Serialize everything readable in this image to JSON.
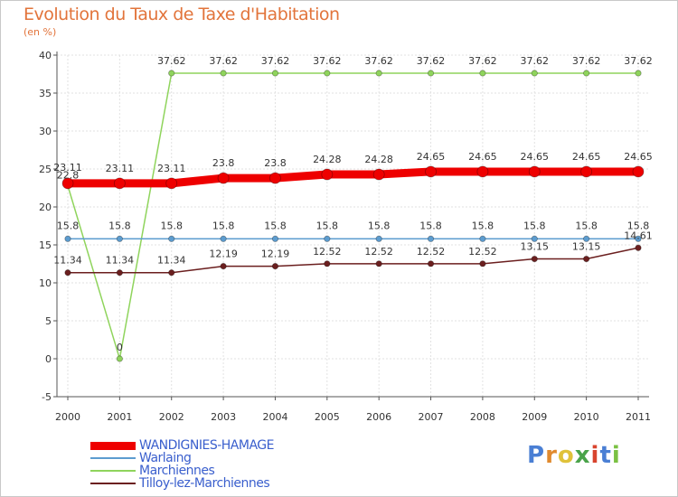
{
  "title": "Evolution du Taux de Taxe d'Habitation",
  "subtitle": "(en %)",
  "logo": {
    "text": "Proxiti",
    "letter_colors": [
      "#4a7fd4",
      "#e08a2e",
      "#e0c23a",
      "#4aa34a",
      "#d8442e",
      "#4a7fd4",
      "#7ac143"
    ]
  },
  "chart_data": {
    "type": "line",
    "title": "Evolution du Taux de Taxe d'Habitation",
    "ylabel": "(en %)",
    "xlabel": "",
    "ylim": [
      -5,
      40
    ],
    "yticks": [
      -5,
      0,
      5,
      10,
      15,
      20,
      25,
      30,
      35,
      40
    ],
    "grid": true,
    "legend": "bottom-left",
    "categories": [
      "2000",
      "2001",
      "2002",
      "2003",
      "2004",
      "2005",
      "2006",
      "2007",
      "2008",
      "2009",
      "2010",
      "2011"
    ],
    "series": [
      {
        "name": "WANDIGNIES-HAMAGE",
        "color": "#ee0000",
        "values": [
          23.11,
          23.11,
          23.11,
          23.8,
          23.8,
          24.28,
          24.28,
          24.65,
          24.65,
          24.65,
          24.65,
          24.65
        ],
        "labels": [
          "23.11",
          "23.11",
          "23.11",
          "23.8",
          "23.8",
          "24.28",
          "24.28",
          "24.65",
          "24.65",
          "24.65",
          "24.65",
          "24.65"
        ]
      },
      {
        "name": "Warlaing",
        "color": "#5c9ccf",
        "values": [
          15.8,
          15.8,
          15.8,
          15.8,
          15.8,
          15.8,
          15.8,
          15.8,
          15.8,
          15.8,
          15.8,
          15.8
        ],
        "labels": [
          "15.8",
          "15.8",
          "15.8",
          "15.8",
          "15.8",
          "15.8",
          "15.8",
          "15.8",
          "15.8",
          "15.8",
          "15.8",
          "15.8"
        ]
      },
      {
        "name": "Marchiennes",
        "color": "#8fd45c",
        "values": [
          22.8,
          0,
          37.62,
          37.62,
          37.62,
          37.62,
          37.62,
          37.62,
          37.62,
          37.62,
          37.62,
          37.62
        ],
        "labels": [
          "22.8",
          "0",
          "37.62",
          "37.62",
          "37.62",
          "37.62",
          "37.62",
          "37.62",
          "37.62",
          "37.62",
          "37.62",
          "37.62"
        ]
      },
      {
        "name": "Tilloy-lez-Marchiennes",
        "color": "#6b1f1f",
        "values": [
          11.34,
          11.34,
          11.34,
          12.19,
          12.19,
          12.52,
          12.52,
          12.52,
          12.52,
          13.15,
          13.15,
          14.61
        ],
        "labels": [
          "11.34",
          "11.34",
          "11.34",
          "12.19",
          "12.19",
          "12.52",
          "12.52",
          "12.52",
          "12.52",
          "13.15",
          "13.15",
          "14.61"
        ]
      }
    ]
  }
}
